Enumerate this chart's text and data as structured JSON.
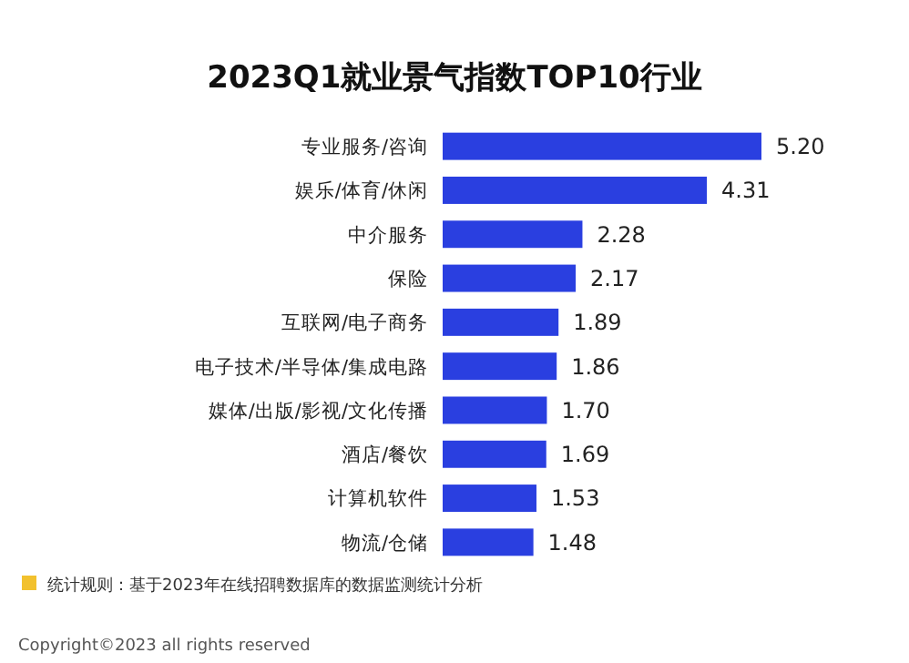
{
  "chart_data": {
    "type": "bar",
    "orientation": "horizontal",
    "title": "2023Q1就业景气指数TOP10行业",
    "categories": [
      "专业服务/咨询",
      "娱乐/体育/休闲",
      "中介服务",
      "保险",
      "互联网/电子商务",
      "电子技术/半导体/集成电路",
      "媒体/出版/影视/文化传播",
      "酒店/餐饮",
      "计算机软件",
      "物流/仓储"
    ],
    "values": [
      5.2,
      4.31,
      2.28,
      2.17,
      1.89,
      1.86,
      1.7,
      1.69,
      1.53,
      1.48
    ],
    "value_labels": [
      "5.20",
      "4.31",
      "2.28",
      "2.17",
      "1.89",
      "1.86",
      "1.70",
      "1.69",
      "1.53",
      "1.48"
    ],
    "color": "#2a3fe0",
    "annotations": [
      "统计规则：基于2023年在线招聘数据库的数据监测统计分析",
      "Copyright©2023 all rights reserved"
    ]
  }
}
